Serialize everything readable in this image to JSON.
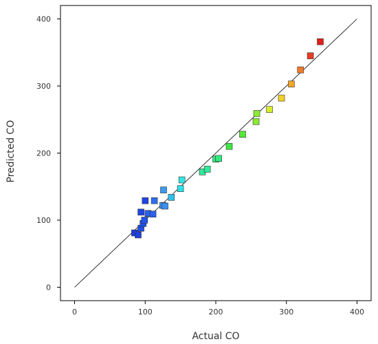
{
  "chart_data": {
    "type": "scatter",
    "title": "",
    "xlabel": "Actual CO",
    "ylabel": "Predicted CO",
    "xlim": [
      -20,
      420
    ],
    "ylim": [
      -20,
      420
    ],
    "x_ticks": [
      0,
      100,
      200,
      300,
      400
    ],
    "y_ticks": [
      0,
      100,
      200,
      300,
      400
    ],
    "x_tick_labels": [
      "0",
      "100",
      "200",
      "300",
      "400"
    ],
    "y_tick_labels": [
      "0",
      "100",
      "200",
      "300",
      "400"
    ],
    "grid": false,
    "legend": "none",
    "reference_line": {
      "from": [
        0,
        0
      ],
      "to": [
        400,
        400
      ],
      "color": "#000000"
    },
    "series": [
      {
        "marker": "square",
        "points": [
          {
            "x": 85,
            "y": 81,
            "color": "#1f3fe0"
          },
          {
            "x": 90,
            "y": 78,
            "color": "#1f3fe0"
          },
          {
            "x": 94,
            "y": 88,
            "color": "#1f4fe8"
          },
          {
            "x": 97,
            "y": 95,
            "color": "#1f4fe8"
          },
          {
            "x": 99,
            "y": 100,
            "color": "#2255ea"
          },
          {
            "x": 94,
            "y": 112,
            "color": "#1f45e4"
          },
          {
            "x": 100,
            "y": 129,
            "color": "#1f45e4"
          },
          {
            "x": 104,
            "y": 110,
            "color": "#2a62ee"
          },
          {
            "x": 111,
            "y": 109,
            "color": "#2a62ee"
          },
          {
            "x": 113,
            "y": 129,
            "color": "#2e6ef0"
          },
          {
            "x": 125,
            "y": 122,
            "color": "#3a8ff0"
          },
          {
            "x": 128,
            "y": 121,
            "color": "#3a8ff0"
          },
          {
            "x": 126,
            "y": 145,
            "color": "#3a9af0"
          },
          {
            "x": 137,
            "y": 134,
            "color": "#33bfe8"
          },
          {
            "x": 150,
            "y": 147,
            "color": "#2fe0e6"
          },
          {
            "x": 152,
            "y": 160,
            "color": "#2fe6e0"
          },
          {
            "x": 181,
            "y": 172,
            "color": "#30e89a"
          },
          {
            "x": 188,
            "y": 176,
            "color": "#30e89a"
          },
          {
            "x": 200,
            "y": 191,
            "color": "#33ea80"
          },
          {
            "x": 204,
            "y": 192,
            "color": "#33ea80"
          },
          {
            "x": 219,
            "y": 210,
            "color": "#3ee840"
          },
          {
            "x": 238,
            "y": 228,
            "color": "#55ea33"
          },
          {
            "x": 257,
            "y": 247,
            "color": "#88ec30"
          },
          {
            "x": 258,
            "y": 259,
            "color": "#88ec30"
          },
          {
            "x": 276,
            "y": 265,
            "color": "#d8ee2c"
          },
          {
            "x": 293,
            "y": 282,
            "color": "#f2d22a"
          },
          {
            "x": 307,
            "y": 303,
            "color": "#f2a72a"
          },
          {
            "x": 320,
            "y": 324,
            "color": "#f27a2a"
          },
          {
            "x": 334,
            "y": 345,
            "color": "#ea3a22"
          },
          {
            "x": 348,
            "y": 366,
            "color": "#e01e1a"
          }
        ]
      }
    ]
  }
}
